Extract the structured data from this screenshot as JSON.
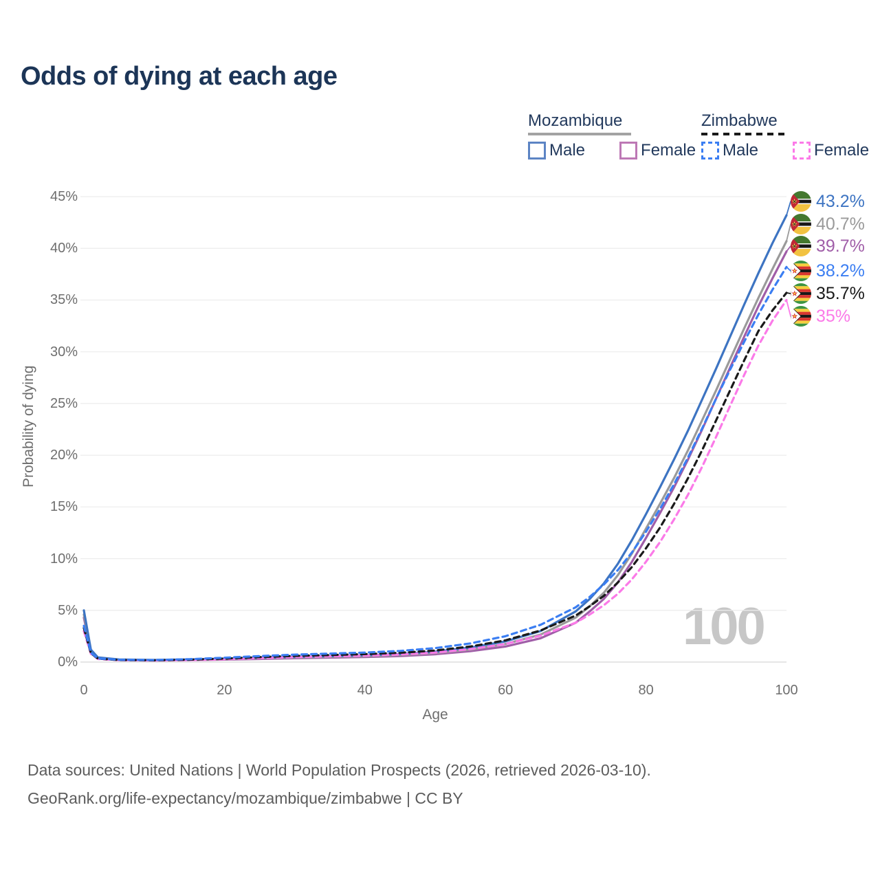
{
  "chart_data": {
    "type": "line",
    "title": "Odds of dying at each age",
    "xlabel": "Age",
    "ylabel": "Probability of dying",
    "xlim": [
      0,
      100
    ],
    "ylim": [
      0,
      45
    ],
    "x_ticks": [
      0,
      20,
      40,
      60,
      80,
      100
    ],
    "y_ticks": [
      0,
      5,
      10,
      15,
      20,
      25,
      30,
      35,
      40,
      45
    ],
    "y_tick_suffix": "%",
    "grid": "horizontal-only",
    "x": [
      0,
      1,
      2,
      5,
      10,
      15,
      20,
      25,
      30,
      35,
      40,
      45,
      50,
      55,
      60,
      65,
      70,
      72,
      74,
      76,
      78,
      80,
      82,
      84,
      86,
      88,
      90,
      92,
      94,
      96,
      98,
      100
    ],
    "series": [
      {
        "name": "Mozambique Female",
        "country": "mozambique",
        "sex": "female",
        "color": "#a05ea8",
        "dashed": false,
        "end_label": "39.7%",
        "values": [
          4.3,
          1.0,
          0.36,
          0.2,
          0.16,
          0.19,
          0.24,
          0.3,
          0.37,
          0.43,
          0.49,
          0.58,
          0.76,
          1.05,
          1.5,
          2.3,
          3.8,
          4.9,
          6.1,
          7.7,
          9.7,
          12.0,
          14.4,
          16.9,
          19.6,
          22.5,
          25.5,
          28.5,
          31.5,
          34.4,
          37.1,
          39.7
        ]
      },
      {
        "name": "Mozambique Both sexes",
        "country": "mozambique",
        "sex": "both",
        "color": "#9a9a9a",
        "dashed": false,
        "end_label": "40.7%",
        "values": [
          4.6,
          1.1,
          0.4,
          0.22,
          0.18,
          0.22,
          0.28,
          0.36,
          0.44,
          0.5,
          0.57,
          0.68,
          0.88,
          1.2,
          1.75,
          2.65,
          4.3,
          5.4,
          6.7,
          8.4,
          10.5,
          12.9,
          15.3,
          17.8,
          20.5,
          23.4,
          26.3,
          29.3,
          32.3,
          35.2,
          38.0,
          40.7
        ]
      },
      {
        "name": "Mozambique Male",
        "country": "mozambique",
        "sex": "male",
        "color": "#3d74c2",
        "dashed": false,
        "end_label": "43.2%",
        "values": [
          5.0,
          1.2,
          0.45,
          0.25,
          0.2,
          0.25,
          0.33,
          0.42,
          0.5,
          0.57,
          0.65,
          0.78,
          1.0,
          1.4,
          2.0,
          3.0,
          4.9,
          6.1,
          7.6,
          9.5,
          11.8,
          14.3,
          16.9,
          19.6,
          22.4,
          25.4,
          28.4,
          31.5,
          34.6,
          37.6,
          40.5,
          43.2
        ]
      },
      {
        "name": "Zimbabwe Female",
        "country": "zimbabwe",
        "sex": "female",
        "color": "#fb7ae8",
        "dashed": true,
        "end_label": "35%",
        "values": [
          3.0,
          0.8,
          0.3,
          0.18,
          0.15,
          0.19,
          0.27,
          0.38,
          0.48,
          0.55,
          0.62,
          0.73,
          0.92,
          1.25,
          1.75,
          2.55,
          3.8,
          4.6,
          5.5,
          6.6,
          8.0,
          9.7,
          11.6,
          13.8,
          16.2,
          18.9,
          21.8,
          24.8,
          27.8,
          30.6,
          33.0,
          35.0
        ]
      },
      {
        "name": "Zimbabwe Both sexes",
        "country": "zimbabwe",
        "sex": "both",
        "color": "#1a1a1a",
        "dashed": true,
        "end_label": "35.7%",
        "values": [
          3.3,
          0.85,
          0.33,
          0.2,
          0.17,
          0.23,
          0.34,
          0.48,
          0.6,
          0.68,
          0.77,
          0.9,
          1.12,
          1.5,
          2.1,
          3.05,
          4.5,
          5.4,
          6.4,
          7.7,
          9.2,
          11.0,
          13.0,
          15.3,
          17.8,
          20.5,
          23.4,
          26.3,
          29.2,
          32.0,
          34.0,
          35.7
        ]
      },
      {
        "name": "Zimbabwe Male",
        "country": "zimbabwe",
        "sex": "male",
        "color": "#3b7ef2",
        "dashed": true,
        "end_label": "38.2%",
        "values": [
          3.5,
          0.9,
          0.35,
          0.22,
          0.2,
          0.28,
          0.42,
          0.58,
          0.72,
          0.82,
          0.92,
          1.08,
          1.35,
          1.8,
          2.5,
          3.6,
          5.3,
          6.3,
          7.5,
          8.9,
          10.6,
          12.6,
          14.8,
          17.2,
          19.8,
          22.6,
          25.5,
          28.3,
          31.0,
          33.6,
          36.0,
          38.2
        ]
      }
    ],
    "legend_position": "top-right",
    "annotations": {
      "selected_age_watermark": "100"
    }
  },
  "legend": {
    "groups": [
      {
        "label": "Mozambique",
        "line_style": "solid",
        "line_color": "#a3a3a3",
        "items": [
          {
            "label": "Male",
            "color": "#5c84c4",
            "dashed": false
          },
          {
            "label": "Female",
            "color": "#bd78b5",
            "dashed": false
          }
        ]
      },
      {
        "label": "Zimbabwe",
        "line_style": "dashed",
        "line_color": "#1a1a1a",
        "items": [
          {
            "label": "Male",
            "color": "#3b7ef2",
            "dashed": true
          },
          {
            "label": "Female",
            "color": "#fb7ae8",
            "dashed": true
          }
        ]
      }
    ]
  },
  "end_labels": [
    {
      "value": "43.2%",
      "flag": "mozambique",
      "series": "Mozambique Male",
      "color": "#3d74c2"
    },
    {
      "value": "40.7%",
      "flag": "mozambique",
      "series": "Mozambique Both sexes",
      "color": "#9a9a9a"
    },
    {
      "value": "39.7%",
      "flag": "mozambique",
      "series": "Mozambique Female",
      "color": "#a05ea8"
    },
    {
      "value": "38.2%",
      "flag": "zimbabwe",
      "series": "Zimbabwe Male",
      "color": "#3b7ef2"
    },
    {
      "value": "35.7%",
      "flag": "zimbabwe",
      "series": "Zimbabwe Both sexes",
      "color": "#1a1a1a"
    },
    {
      "value": "35%",
      "flag": "zimbabwe",
      "series": "Zimbabwe Female",
      "color": "#fb7ae8"
    }
  ],
  "watermark": "100",
  "footer": {
    "line1": "Data sources: United Nations | World Population Prospects (2026, retrieved 2026-03-10).",
    "line2": "GeoRank.org/life-expectancy/mozambique/zimbabwe | CC BY"
  }
}
